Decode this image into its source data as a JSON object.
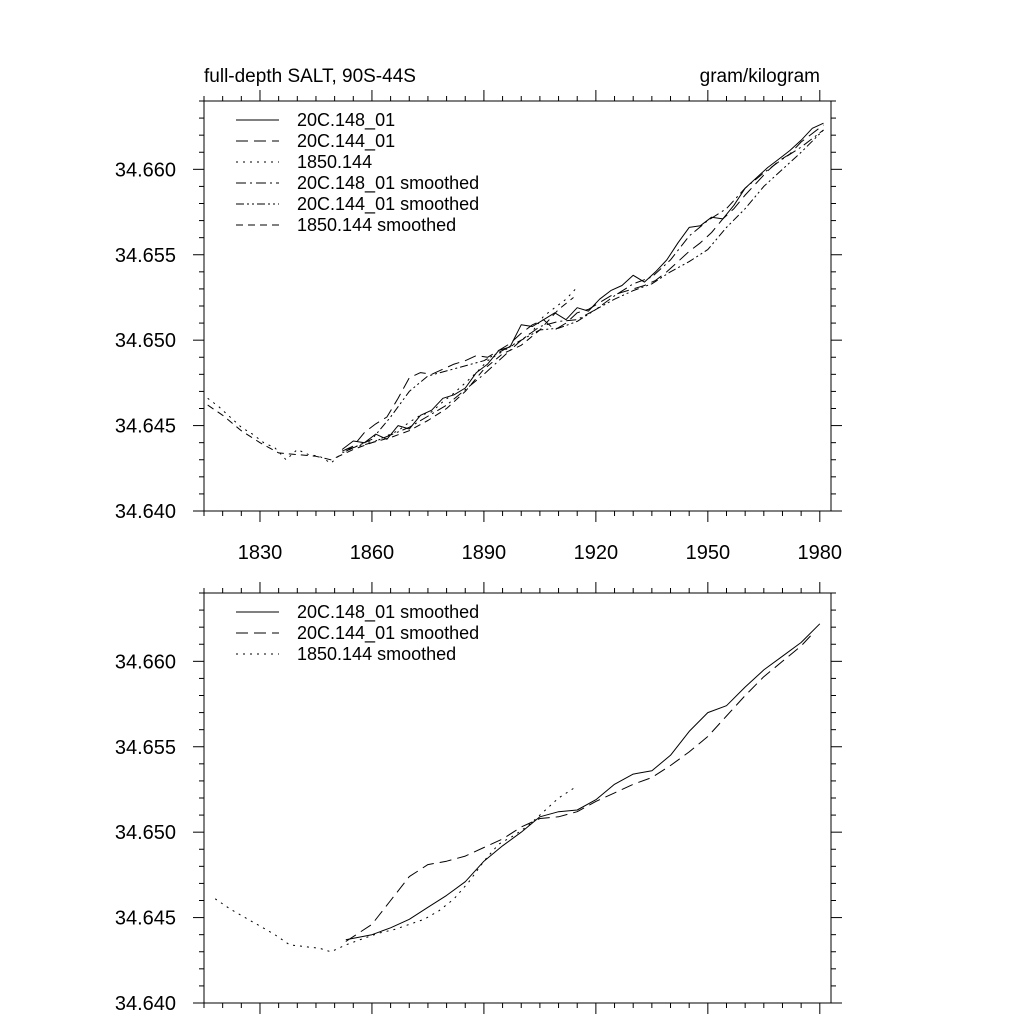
{
  "colors": {
    "line": "#000000",
    "background": "#ffffff"
  },
  "chart_data": [
    {
      "type": "line",
      "title": "full-depth SALT, 90S-44S",
      "units": "gram/kilogram",
      "xlim": [
        1815,
        1983
      ],
      "ylim": [
        34.64,
        34.664
      ],
      "x_ticks": [
        1830,
        1860,
        1890,
        1920,
        1950,
        1980
      ],
      "x_tick_labels": [
        "1830",
        "1860",
        "1890",
        "1920",
        "1950",
        "1980"
      ],
      "y_ticks": [
        34.64,
        34.645,
        34.65,
        34.655,
        34.66
      ],
      "y_tick_labels": [
        "34.640",
        "34.645",
        "34.650",
        "34.655",
        "34.660"
      ],
      "legend_position": "top-left",
      "series": [
        {
          "name": "20C.148_01",
          "dash": "solid",
          "x": [
            1852,
            1855,
            1858,
            1861,
            1864,
            1867,
            1870,
            1873,
            1876,
            1879,
            1882,
            1885,
            1888,
            1891,
            1894,
            1897,
            1900,
            1903,
            1906,
            1909,
            1912,
            1915,
            1918,
            1921,
            1924,
            1927,
            1930,
            1933,
            1936,
            1939,
            1942,
            1945,
            1948,
            1951,
            1954,
            1957,
            1960,
            1963,
            1966,
            1969,
            1972,
            1975,
            1978,
            1981
          ],
          "y": [
            34.6436,
            34.6441,
            34.644,
            34.6445,
            34.6442,
            34.645,
            34.6448,
            34.6456,
            34.6459,
            34.6466,
            34.6468,
            34.6472,
            34.6481,
            34.6486,
            34.6494,
            34.6496,
            34.6509,
            34.6508,
            34.6512,
            34.6516,
            34.6512,
            34.6519,
            34.6517,
            34.6524,
            34.6529,
            34.6532,
            34.6538,
            34.6534,
            34.654,
            34.6547,
            34.6557,
            34.6566,
            34.6567,
            34.6572,
            34.6571,
            34.6579,
            34.6589,
            34.6595,
            34.6601,
            34.6606,
            34.6611,
            34.6617,
            34.6624,
            34.6627
          ]
        },
        {
          "name": "20C.144_01",
          "dash": "long-dash",
          "x": [
            1852,
            1855,
            1858,
            1861,
            1864,
            1867,
            1870,
            1873,
            1876,
            1879,
            1882,
            1885,
            1888,
            1891,
            1894,
            1897,
            1900,
            1903,
            1906,
            1909,
            1912,
            1915,
            1918,
            1921,
            1924,
            1927,
            1930,
            1933,
            1936,
            1939,
            1942,
            1945,
            1948,
            1951,
            1954,
            1957,
            1960,
            1963,
            1966,
            1969,
            1972,
            1975,
            1978,
            1981
          ],
          "y": [
            34.6435,
            34.6438,
            34.6446,
            34.6451,
            34.6455,
            34.6466,
            34.6478,
            34.6481,
            34.648,
            34.6483,
            34.6486,
            34.6488,
            34.6491,
            34.649,
            34.6494,
            34.6498,
            34.6504,
            34.6509,
            34.6512,
            34.6506,
            34.651,
            34.6516,
            34.6518,
            34.6522,
            34.6526,
            34.6528,
            34.653,
            34.6532,
            34.6535,
            34.654,
            34.6546,
            34.6552,
            34.6557,
            34.6563,
            34.6571,
            34.6577,
            34.6585,
            34.6592,
            34.6599,
            34.6605,
            34.6609,
            34.6616,
            34.6621,
            34.6626
          ]
        },
        {
          "name": "1850.144",
          "dash": "dot",
          "x": [
            1816,
            1819,
            1822,
            1825,
            1828,
            1831,
            1834,
            1837,
            1840,
            1843,
            1846,
            1849,
            1852,
            1855,
            1858,
            1861,
            1864,
            1867,
            1870,
            1873,
            1876,
            1879,
            1882,
            1885,
            1888,
            1891,
            1894,
            1897,
            1900,
            1903,
            1906,
            1909,
            1912,
            1915
          ],
          "y": [
            34.6466,
            34.6461,
            34.6455,
            34.6449,
            34.6445,
            34.644,
            34.6437,
            34.643,
            34.6436,
            34.6433,
            34.6432,
            34.6428,
            34.6434,
            34.6437,
            34.644,
            34.6441,
            34.6444,
            34.6447,
            34.6452,
            34.6456,
            34.6458,
            34.6464,
            34.6469,
            34.6475,
            34.6481,
            34.6488,
            34.6492,
            34.6496,
            34.65,
            34.6505,
            34.6514,
            34.6519,
            34.6524,
            34.6531
          ]
        },
        {
          "name": "20C.148_01 smoothed",
          "dash": "dash-dot",
          "x": [
            1853,
            1860,
            1870,
            1880,
            1890,
            1900,
            1905,
            1910,
            1915,
            1920,
            1925,
            1930,
            1935,
            1940,
            1945,
            1950,
            1955,
            1960,
            1965,
            1970,
            1975,
            1981
          ],
          "y": [
            34.6436,
            34.644,
            34.6449,
            34.6462,
            34.648,
            34.65,
            34.6508,
            34.6511,
            34.6512,
            34.6518,
            34.6526,
            34.6533,
            34.6537,
            34.6547,
            34.6561,
            34.657,
            34.6577,
            34.6589,
            34.6598,
            34.6606,
            34.6613,
            34.6623
          ]
        },
        {
          "name": "20C.144_01 smoothed",
          "dash": "dash-dot-dot",
          "x": [
            1853,
            1860,
            1865,
            1870,
            1875,
            1880,
            1890,
            1900,
            1905,
            1910,
            1915,
            1920,
            1925,
            1930,
            1935,
            1940,
            1945,
            1950,
            1955,
            1960,
            1965,
            1970,
            1975,
            1981
          ],
          "y": [
            34.6435,
            34.6442,
            34.6455,
            34.647,
            34.6479,
            34.6482,
            34.6488,
            34.65,
            34.6506,
            34.6507,
            34.6511,
            34.6518,
            34.6524,
            34.6529,
            34.6533,
            34.654,
            34.6546,
            34.6553,
            34.6566,
            34.6577,
            34.659,
            34.66,
            34.661,
            34.6623
          ]
        },
        {
          "name": "1850.144 smoothed",
          "dash": "medium-dash",
          "x": [
            1816,
            1820,
            1825,
            1830,
            1835,
            1840,
            1845,
            1849,
            1855,
            1860,
            1865,
            1870,
            1875,
            1880,
            1885,
            1890,
            1895,
            1900,
            1905,
            1910,
            1914
          ],
          "y": [
            34.6462,
            34.6456,
            34.6447,
            34.644,
            34.6434,
            34.6433,
            34.6432,
            34.643,
            34.6436,
            34.644,
            34.6443,
            34.6447,
            34.6453,
            34.646,
            34.647,
            34.6483,
            34.6492,
            34.6497,
            34.6506,
            34.6518,
            34.6525
          ]
        }
      ]
    },
    {
      "type": "line",
      "xlim": [
        1815,
        1983
      ],
      "ylim": [
        34.64,
        34.664
      ],
      "x_ticks": [
        1830,
        1860,
        1890,
        1920,
        1950,
        1980
      ],
      "y_ticks": [
        34.64,
        34.645,
        34.65,
        34.655,
        34.66
      ],
      "y_tick_labels": [
        "34.640",
        "34.645",
        "34.650",
        "34.655",
        "34.660"
      ],
      "legend_position": "top-left",
      "series": [
        {
          "name": "20C.148_01 smoothed",
          "dash": "solid",
          "x": [
            1853,
            1860,
            1865,
            1870,
            1875,
            1880,
            1885,
            1890,
            1895,
            1900,
            1905,
            1910,
            1915,
            1920,
            1925,
            1930,
            1935,
            1940,
            1945,
            1950,
            1955,
            1960,
            1965,
            1970,
            1975,
            1980
          ],
          "y": [
            34.6437,
            34.644,
            34.6444,
            34.6449,
            34.6456,
            34.6463,
            34.6471,
            34.6483,
            34.6492,
            34.65,
            34.6509,
            34.6512,
            34.6513,
            34.6519,
            34.6528,
            34.6534,
            34.6536,
            34.6545,
            34.6559,
            34.657,
            34.6574,
            34.6585,
            34.6595,
            34.6603,
            34.6611,
            34.6622
          ]
        },
        {
          "name": "20C.144_01 smoothed",
          "dash": "long-dash",
          "x": [
            1853,
            1860,
            1865,
            1870,
            1875,
            1880,
            1885,
            1890,
            1895,
            1900,
            1905,
            1910,
            1915,
            1920,
            1925,
            1930,
            1935,
            1940,
            1945,
            1950,
            1955,
            1960,
            1965,
            1970,
            1975,
            1978
          ],
          "y": [
            34.6436,
            34.6446,
            34.646,
            34.6474,
            34.6481,
            34.6483,
            34.6486,
            34.6491,
            34.6496,
            34.6503,
            34.6508,
            34.6509,
            34.6512,
            34.6518,
            34.6523,
            34.6528,
            34.6532,
            34.6539,
            34.6547,
            34.6556,
            34.6568,
            34.658,
            34.6591,
            34.66,
            34.6609,
            34.6616
          ]
        },
        {
          "name": "1850.144 smoothed",
          "dash": "dot",
          "x": [
            1818,
            1822,
            1826,
            1830,
            1834,
            1838,
            1842,
            1846,
            1849,
            1853,
            1858,
            1862,
            1866,
            1870,
            1874,
            1878,
            1882,
            1886,
            1890,
            1894,
            1898,
            1902,
            1906,
            1910,
            1915
          ],
          "y": [
            34.6461,
            34.6455,
            34.645,
            34.6445,
            34.644,
            34.6434,
            34.6433,
            34.6432,
            34.643,
            34.6434,
            34.6438,
            34.6441,
            34.6443,
            34.6446,
            34.6449,
            34.6454,
            34.6461,
            34.6471,
            34.6483,
            34.6493,
            34.6498,
            34.6504,
            34.6512,
            34.652,
            34.6527
          ]
        }
      ]
    }
  ]
}
